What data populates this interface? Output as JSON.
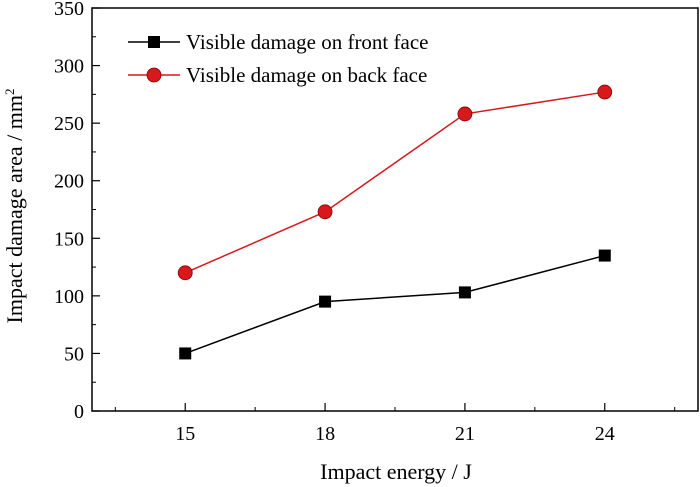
{
  "chart_data": {
    "type": "line",
    "title": "",
    "xlabel": "Impact energy / J",
    "ylabel": "Impact damage area / mm",
    "ylabel_superscript": "2",
    "categories": [
      15,
      18,
      21,
      24
    ],
    "x_tick_labels": [
      "15",
      "18",
      "21",
      "24"
    ],
    "ylim": [
      0,
      350
    ],
    "y_ticks": [
      0,
      50,
      100,
      150,
      200,
      250,
      300,
      350
    ],
    "y_tick_labels": [
      "0",
      "50",
      "100",
      "150",
      "200",
      "250",
      "300",
      "350"
    ],
    "grid": false,
    "legend_position": "top-left",
    "series": [
      {
        "name": "Visible damage on front face",
        "marker": "square",
        "color": "#000000",
        "values": [
          50,
          95,
          103,
          135
        ]
      },
      {
        "name": "Visible damage on back face",
        "marker": "circle",
        "color": "#d7191c",
        "values": [
          120,
          173,
          258,
          277
        ]
      }
    ]
  }
}
